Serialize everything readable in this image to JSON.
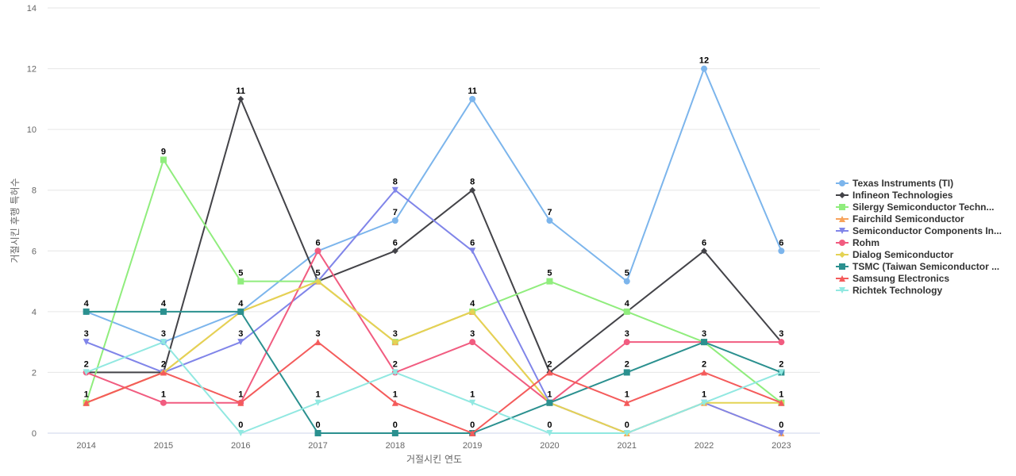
{
  "chart_data": {
    "type": "line",
    "xlabel": "거절시킨 연도",
    "ylabel": "거절시킨 후행 특허수",
    "ylim": [
      0,
      14
    ],
    "yticks": [
      0,
      2,
      4,
      6,
      8,
      10,
      12,
      14
    ],
    "grid": true,
    "legend_position": "right",
    "categories": [
      "2014",
      "2015",
      "2016",
      "2017",
      "2018",
      "2019",
      "2020",
      "2021",
      "2022",
      "2023"
    ],
    "series": [
      {
        "name": "Texas Instruments (TI)",
        "color": "#7cb5ec",
        "marker": "circle",
        "values": [
          4,
          3,
          4,
          6,
          7,
          11,
          7,
          5,
          12,
          6
        ]
      },
      {
        "name": "Infineon Technologies",
        "color": "#434348",
        "marker": "diamond",
        "values": [
          2,
          2,
          11,
          5,
          6,
          8,
          2,
          4,
          6,
          3
        ]
      },
      {
        "name": "Silergy Semiconductor Techn...",
        "color": "#90ed7d",
        "marker": "square",
        "values": [
          1,
          9,
          5,
          5,
          3,
          4,
          5,
          4,
          3,
          1
        ]
      },
      {
        "name": "Fairchild Semiconductor",
        "color": "#f7a35c",
        "marker": "triangle",
        "values": [
          1,
          2,
          4,
          5,
          3,
          4,
          1,
          0,
          1,
          0
        ]
      },
      {
        "name": "Semiconductor Components In...",
        "color": "#8085e9",
        "marker": "triangle-down",
        "values": [
          3,
          2,
          3,
          5,
          8,
          6,
          1,
          0,
          1,
          0
        ]
      },
      {
        "name": "Rohm",
        "color": "#f15c80",
        "marker": "circle",
        "values": [
          2,
          1,
          1,
          6,
          2,
          3,
          1,
          3,
          3,
          3
        ]
      },
      {
        "name": "Dialog Semiconductor",
        "color": "#e4d354",
        "marker": "diamond",
        "values": [
          1,
          2,
          4,
          5,
          3,
          4,
          1,
          0,
          1,
          1
        ]
      },
      {
        "name": "TSMC (Taiwan Semiconductor ...",
        "color": "#2b908f",
        "marker": "square",
        "values": [
          4,
          4,
          4,
          0,
          0,
          0,
          1,
          2,
          3,
          2
        ]
      },
      {
        "name": "Samsung Electronics",
        "color": "#f45b5b",
        "marker": "triangle",
        "values": [
          1,
          2,
          1,
          3,
          1,
          0,
          2,
          1,
          2,
          1
        ]
      },
      {
        "name": "Richtek Technology",
        "color": "#91e8e1",
        "marker": "triangle-down",
        "values": [
          2,
          3,
          0,
          1,
          2,
          1,
          0,
          0,
          1,
          2
        ]
      }
    ]
  }
}
